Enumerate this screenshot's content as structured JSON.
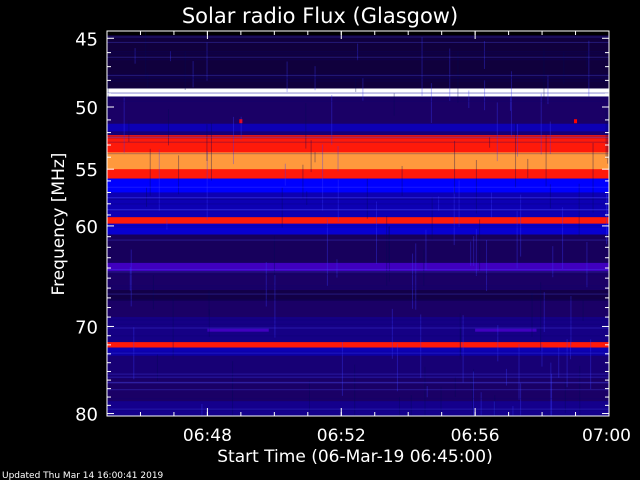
{
  "chart_data": {
    "type": "heatmap",
    "title": "Solar radio Flux (Glasgow)",
    "xlabel": "Start Time (06-Mar-19 06:45:00)",
    "ylabel": "Frequency [MHz]",
    "footer": "Updated Thu Mar 14 16:00:41 2019",
    "xlim": [
      "06:45",
      "07:00"
    ],
    "ylim_mhz": [
      44.5,
      80.3
    ],
    "x_ticks": [
      "06:48",
      "06:52",
      "06:56",
      "07:00"
    ],
    "y_ticks": [
      45,
      50,
      55,
      60,
      70,
      80
    ],
    "colormap": [
      "#000000",
      "#1a0066",
      "#0000ff",
      "#ff0000",
      "#ffff66",
      "#ffffff"
    ],
    "background_band": {
      "from_mhz": 44.8,
      "to_mhz": 80.3,
      "level": 0.22
    },
    "frequency_bands": [
      {
        "from_mhz": 44.8,
        "to_mhz": 48.6,
        "level": 0.12
      },
      {
        "from_mhz": 48.6,
        "to_mhz": 49.2,
        "level": 1.0
      },
      {
        "from_mhz": 49.2,
        "to_mhz": 51.3,
        "level": 0.2
      },
      {
        "from_mhz": 51.3,
        "to_mhz": 51.9,
        "level": 0.3
      },
      {
        "from_mhz": 52.2,
        "to_mhz": 55.8,
        "level": 0.62
      },
      {
        "from_mhz": 53.6,
        "to_mhz": 55.0,
        "level": 0.72
      },
      {
        "from_mhz": 55.8,
        "to_mhz": 57.0,
        "level": 0.4
      },
      {
        "from_mhz": 57.0,
        "to_mhz": 59.2,
        "level": 0.3
      },
      {
        "from_mhz": 59.2,
        "to_mhz": 59.8,
        "level": 0.62
      },
      {
        "from_mhz": 59.8,
        "to_mhz": 60.8,
        "level": 0.34
      },
      {
        "from_mhz": 60.8,
        "to_mhz": 63.5,
        "level": 0.18
      },
      {
        "from_mhz": 63.5,
        "to_mhz": 64.3,
        "level": 0.45
      },
      {
        "from_mhz": 64.3,
        "to_mhz": 66.2,
        "level": 0.2
      },
      {
        "from_mhz": 66.2,
        "to_mhz": 67.3,
        "level": 0.14
      },
      {
        "from_mhz": 67.3,
        "to_mhz": 69.0,
        "level": 0.2
      },
      {
        "from_mhz": 69.0,
        "to_mhz": 71.7,
        "level": 0.24
      },
      {
        "from_mhz": 71.7,
        "to_mhz": 72.3,
        "level": 0.62
      },
      {
        "from_mhz": 72.3,
        "to_mhz": 73.2,
        "level": 0.3
      },
      {
        "from_mhz": 73.2,
        "to_mhz": 75.8,
        "level": 0.22
      },
      {
        "from_mhz": 75.8,
        "to_mhz": 78.5,
        "level": 0.2
      },
      {
        "from_mhz": 78.5,
        "to_mhz": 80.3,
        "level": 0.25
      }
    ],
    "features": [
      {
        "kind": "spot",
        "time": "06:49:00",
        "freq_mhz": 51.1,
        "level": 0.6
      },
      {
        "kind": "spot",
        "time": "06:59:00",
        "freq_mhz": 51.1,
        "level": 0.6
      },
      {
        "kind": "streak",
        "from_time": "06:48:00",
        "to_time": "06:49:50",
        "freq_mhz": 70.4,
        "level": 0.45
      },
      {
        "kind": "streak",
        "from_time": "06:56:00",
        "to_time": "06:57:50",
        "freq_mhz": 70.4,
        "level": 0.45
      }
    ]
  }
}
